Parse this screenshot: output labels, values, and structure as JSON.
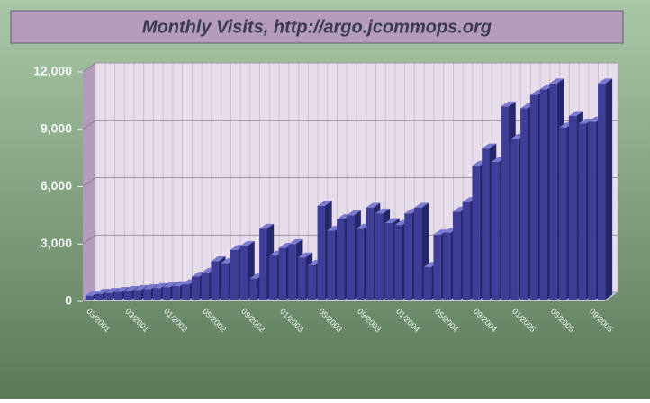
{
  "chart_data": {
    "type": "bar3d",
    "title": "Monthly Visits, http://argo.jcommops.org",
    "categories": [
      "03/2001",
      null,
      null,
      null,
      "09/2001",
      null,
      null,
      null,
      "01/2002",
      null,
      null,
      null,
      "05/2002",
      null,
      null,
      null,
      "09/2002",
      null,
      null,
      null,
      "01/2003",
      null,
      null,
      null,
      "05/2003",
      null,
      null,
      null,
      "09/2003",
      null,
      null,
      null,
      "01/2004",
      null,
      null,
      null,
      "05/2004",
      null,
      null,
      null,
      "09/2004",
      null,
      null,
      null,
      "01/2005",
      null,
      null,
      null,
      "05/2005",
      null,
      null,
      null,
      "09/2005",
      null
    ],
    "values": [
      200,
      300,
      350,
      400,
      450,
      500,
      550,
      600,
      650,
      700,
      800,
      1200,
      1400,
      2000,
      1900,
      2600,
      2800,
      1100,
      3700,
      2300,
      2700,
      2900,
      2200,
      1800,
      4900,
      3600,
      4200,
      4400,
      3700,
      4800,
      4500,
      4000,
      3900,
      4500,
      4800,
      1700,
      3400,
      3500,
      4600,
      5100,
      7000,
      7900,
      7200,
      10100,
      8400,
      10000,
      10700,
      11000,
      11300,
      9000,
      9600,
      9200,
      9300,
      11300
    ],
    "color": "#3e3e98",
    "ylim": [
      0,
      12000
    ],
    "yticks": [
      0,
      {
        "value": 3000,
        "label": "3,000"
      },
      {
        "value": 6000,
        "label": "6,000"
      },
      {
        "value": 9000,
        "label": "9,000"
      },
      {
        "value": 12000,
        "label": "12,000"
      }
    ],
    "grid": true
  }
}
